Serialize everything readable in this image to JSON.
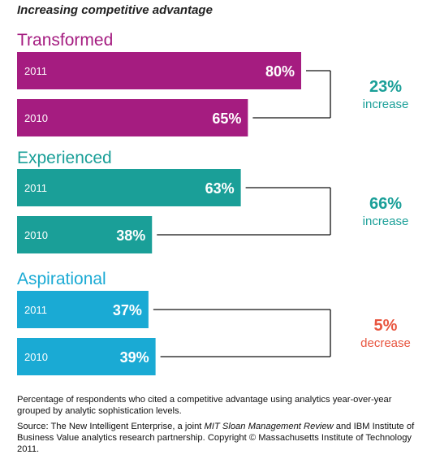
{
  "title": "Increasing competitive advantage",
  "colors": {
    "Transformed": "#a51c80",
    "Experienced": "#1a9f98",
    "Aspirational": "#1aaad4",
    "increase": "#1a9f98",
    "decrease": "#e8553f"
  },
  "chart_data": {
    "type": "bar",
    "orientation": "horizontal",
    "title": "Increasing competitive advantage",
    "value_unit": "%",
    "groups": [
      {
        "name": "Transformed",
        "bars": [
          {
            "year": "2011",
            "value": 80,
            "label": "80%"
          },
          {
            "year": "2010",
            "value": 65,
            "label": "65%"
          }
        ],
        "change_value": "23%",
        "change_text": "increase"
      },
      {
        "name": "Experienced",
        "bars": [
          {
            "year": "2011",
            "value": 63,
            "label": "63%"
          },
          {
            "year": "2010",
            "value": 38,
            "label": "38%"
          }
        ],
        "change_value": "66%",
        "change_text": "increase"
      },
      {
        "name": "Aspirational",
        "bars": [
          {
            "year": "2011",
            "value": 37,
            "label": "37%"
          },
          {
            "year": "2010",
            "value": 39,
            "label": "39%"
          }
        ],
        "change_value": "5%",
        "change_text": "decrease"
      }
    ]
  },
  "footnote": {
    "description": "Percentage of respondents who cited a competitive advantage using analytics year-over-year grouped by analytic sophistication levels.",
    "source_prefix": "Source: The New Intelligent Enterprise, a joint ",
    "source_italic": "MIT Sloan Management Review",
    "source_suffix": " and IBM Institute of Business Value analytics research partnership. Copyright © Massachusetts Institute of Technology 2011."
  }
}
